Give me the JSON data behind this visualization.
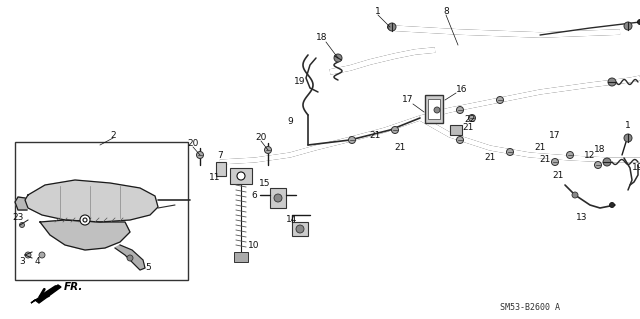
{
  "bg_color": "#ffffff",
  "fig_width": 6.4,
  "fig_height": 3.19,
  "dpi": 100,
  "diagram_note": "SM53-B2600 A",
  "fr_label": "FR.",
  "line_color": "#1a1a1a",
  "cable_color": "#2a2a2a",
  "text_color": "#111111",
  "fs_label": 6.5,
  "fs_note": 6.0
}
